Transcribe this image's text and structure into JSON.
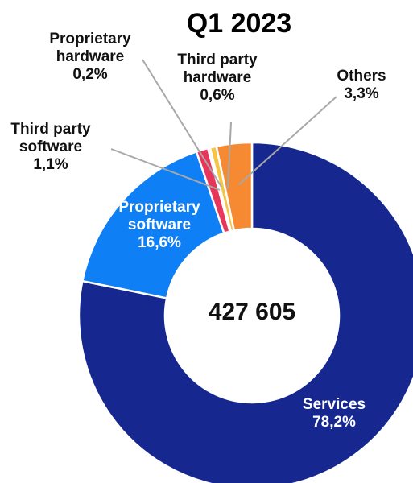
{
  "chart_data": {
    "type": "pie",
    "variant": "donut",
    "title": "Q1 2023",
    "center_label": "427 605",
    "slices": [
      {
        "label_lines": [
          "Services"
        ],
        "value_label": "78,2%",
        "value": 78.2,
        "color": "#16288f"
      },
      {
        "label_lines": [
          "Proprietary",
          "software"
        ],
        "value_label": "16,6%",
        "value": 16.6,
        "color": "#0f7ff5"
      },
      {
        "label_lines": [
          "Third party",
          "software"
        ],
        "value_label": "1,1%",
        "value": 1.1,
        "color": "#e8365a"
      },
      {
        "label_lines": [
          "Proprietary",
          "hardware"
        ],
        "value_label": "0,2%",
        "value": 0.2,
        "color": "#7a4a28"
      },
      {
        "label_lines": [
          "Third party",
          "hardware"
        ],
        "value_label": "0,6%",
        "value": 0.6,
        "color": "#f7c545"
      },
      {
        "label_lines": [
          "Others"
        ],
        "value_label": "3,3%",
        "value": 3.3,
        "color": "#f58a33"
      }
    ]
  }
}
